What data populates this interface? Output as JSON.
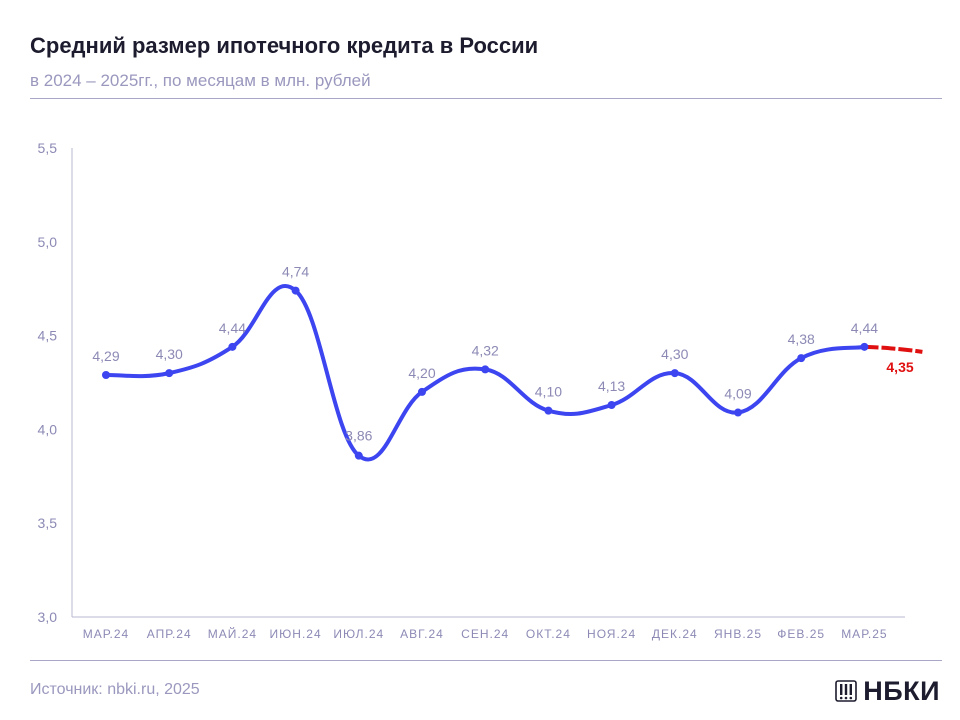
{
  "header": {
    "title": "Средний размер ипотечного кредита в России",
    "subtitle": "в 2024 – 2025гг., по месяцам в млн. рублей"
  },
  "footer": {
    "source": "Источник: nbki.ru, 2025",
    "logo_text": "НБКИ"
  },
  "colors": {
    "line": "#3c45f0",
    "forecast": "#e01010",
    "label": "#8c8ab5",
    "axis": "#b9b7d2"
  },
  "chart_data": {
    "type": "line",
    "title": "Средний размер ипотечного кредита в России",
    "subtitle": "в 2024 – 2025гг., по месяцам в млн. рублей",
    "categories": [
      "МАР.24",
      "АПР.24",
      "МАЙ.24",
      "ИЮН.24",
      "ИЮЛ.24",
      "АВГ.24",
      "СЕН.24",
      "ОКТ.24",
      "НОЯ.24",
      "ДЕК.24",
      "ЯНВ.25",
      "ФЕВ.25",
      "МАР.25"
    ],
    "values": [
      4.29,
      4.3,
      4.44,
      4.74,
      3.86,
      4.2,
      4.32,
      4.1,
      4.13,
      4.3,
      4.09,
      4.38,
      4.44
    ],
    "value_labels": [
      "4,29",
      "4,30",
      "4,44",
      "4,74",
      "3,86",
      "4,20",
      "4,32",
      "4,10",
      "4,13",
      "4,30",
      "4,09",
      "4,38",
      "4,44"
    ],
    "forecast": {
      "value": 4.35,
      "label": "4,35"
    },
    "y_ticks": [
      3.0,
      3.5,
      4.0,
      4.5,
      5.0,
      5.5
    ],
    "y_tick_labels": [
      "3,0",
      "3,5",
      "4,0",
      "4,5",
      "5,0",
      "5,5"
    ],
    "ylim": [
      3.0,
      5.5
    ],
    "grid": false,
    "xlabel": "",
    "ylabel": ""
  }
}
